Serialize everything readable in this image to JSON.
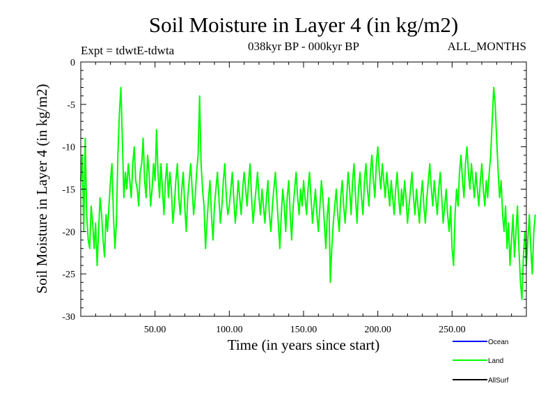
{
  "chart_data": {
    "type": "line",
    "title": "Soil Moisture in Layer 4 (in kg/m2)",
    "subtitle_left": "Expt = tdwtE-tdwta",
    "subtitle_center": "038kyr BP - 000kyr BP",
    "subtitle_right": "ALL_MONTHS",
    "xlabel": "Time (in years since start)",
    "ylabel": "Soil Moisture in Layer 4 (in kg/m2)",
    "xlim": [
      0,
      300
    ],
    "ylim": [
      -30,
      0
    ],
    "x_ticks": [
      50,
      100,
      150,
      200,
      250
    ],
    "x_tick_labels": [
      "50.00",
      "100.00",
      "150.00",
      "200.00",
      "250.00"
    ],
    "y_ticks": [
      0,
      -5,
      -10,
      -15,
      -20,
      -25,
      -30
    ],
    "y_tick_labels": [
      "0",
      "-5",
      "-10",
      "-15",
      "-20",
      "-25",
      "-30"
    ],
    "legend_position": "bottom-right",
    "series": [
      {
        "name": "Ocean",
        "color": "#0000ff",
        "values": []
      },
      {
        "name": "Land",
        "color": "#00ff00",
        "x_start": 0,
        "x_step": 1,
        "values": [
          -14,
          -11,
          -20,
          -9,
          -18,
          -21,
          -22,
          -17,
          -19,
          -22,
          -19,
          -24,
          -20,
          -16,
          -18,
          -21,
          -23,
          -18,
          -20,
          -17,
          -14,
          -12,
          -18,
          -22,
          -19,
          -11,
          -6,
          -3,
          -9,
          -16,
          -13,
          -15,
          -12,
          -14,
          -16,
          -12,
          -10,
          -14,
          -15,
          -17,
          -13,
          -12,
          -9,
          -14,
          -16,
          -11,
          -13,
          -17,
          -15,
          -12,
          -14,
          -8,
          -13,
          -16,
          -12,
          -15,
          -18,
          -14,
          -12,
          -16,
          -13,
          -15,
          -19,
          -17,
          -14,
          -12,
          -16,
          -18,
          -15,
          -13,
          -17,
          -20,
          -16,
          -14,
          -12,
          -15,
          -18,
          -16,
          -13,
          -11,
          -4,
          -12,
          -15,
          -17,
          -22,
          -19,
          -16,
          -14,
          -18,
          -21,
          -17,
          -15,
          -13,
          -16,
          -19,
          -17,
          -14,
          -12,
          -16,
          -18,
          -17,
          -15,
          -13,
          -16,
          -19,
          -17,
          -14,
          -16,
          -18,
          -15,
          -13,
          -15,
          -17,
          -14,
          -12,
          -16,
          -19,
          -17,
          -15,
          -13,
          -16,
          -18,
          -15,
          -17,
          -19,
          -16,
          -14,
          -18,
          -20,
          -17,
          -15,
          -13,
          -16,
          -19,
          -22,
          -18,
          -15,
          -17,
          -20,
          -16,
          -14,
          -18,
          -21,
          -17,
          -15,
          -13,
          -16,
          -18,
          -15,
          -17,
          -14,
          -16,
          -18,
          -15,
          -13,
          -16,
          -19,
          -17,
          -15,
          -18,
          -20,
          -17,
          -14,
          -16,
          -19,
          -22,
          -18,
          -16,
          -26,
          -22,
          -19,
          -17,
          -15,
          -18,
          -20,
          -16,
          -14,
          -17,
          -19,
          -16,
          -13,
          -15,
          -18,
          -14,
          -12,
          -16,
          -19,
          -15,
          -13,
          -16,
          -18,
          -14,
          -12,
          -15,
          -17,
          -13,
          -11,
          -14,
          -16,
          -12,
          -10,
          -13,
          -15,
          -12,
          -14,
          -16,
          -13,
          -15,
          -17,
          -14,
          -16,
          -18,
          -15,
          -13,
          -16,
          -18,
          -15,
          -17,
          -14,
          -16,
          -19,
          -17,
          -15,
          -13,
          -16,
          -18,
          -15,
          -17,
          -19,
          -16,
          -14,
          -17,
          -19,
          -16,
          -14,
          -12,
          -15,
          -17,
          -14,
          -16,
          -18,
          -15,
          -13,
          -16,
          -19,
          -17,
          -15,
          -18,
          -20,
          -17,
          -22,
          -24,
          -18,
          -15,
          -17,
          -13,
          -11,
          -14,
          -16,
          -12,
          -10,
          -13,
          -15,
          -12,
          -14,
          -16,
          -13,
          -15,
          -17,
          -14,
          -12,
          -15,
          -17,
          -14,
          -16,
          -13,
          -11,
          -7,
          -3,
          -5,
          -9,
          -13,
          -16,
          -14,
          -18,
          -20,
          -17,
          -22,
          -19,
          -24,
          -21,
          -18,
          -23,
          -20,
          -17,
          -22,
          -26,
          -28,
          -23,
          -20,
          -24,
          -21,
          -18,
          -22,
          -25,
          -20,
          -18
        ]
      },
      {
        "name": "AllSurf",
        "color": "#000000",
        "values": []
      }
    ]
  }
}
